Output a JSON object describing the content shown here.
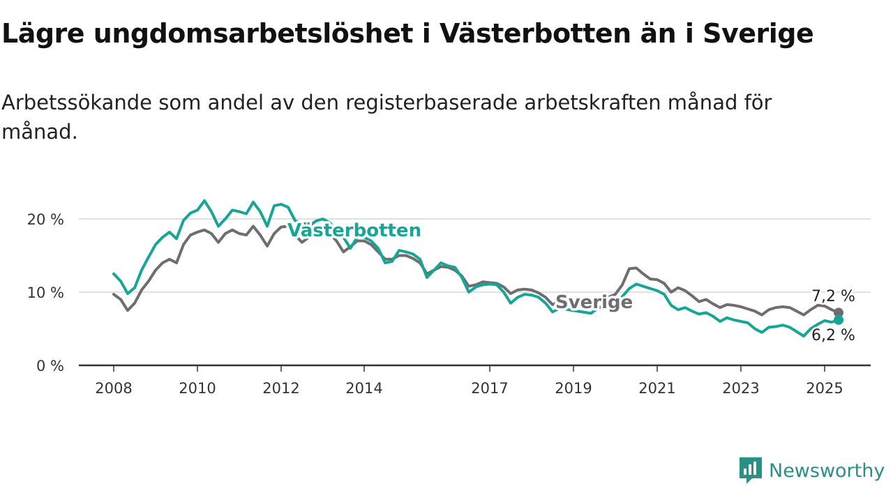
{
  "header": {
    "title": "Lägre ungdomsarbetslöshet i Västerbotten än i Sverige",
    "subtitle": "Arbetssökande som andel av den registerbaserade arbetskraften månad för månad."
  },
  "brand": {
    "name": "Newsworthy",
    "color": "#2a8f85",
    "icon": "newsworthy-logo-icon"
  },
  "chart_data": {
    "type": "line",
    "x_ticks": [
      "2008",
      "2010",
      "2012",
      "2014",
      "2017",
      "2019",
      "2021",
      "2023",
      "2025"
    ],
    "y_ticks": [
      "0 %",
      "10 %",
      "20 %"
    ],
    "ylim": [
      0,
      23
    ],
    "y_tick_values": [
      0,
      10,
      20
    ],
    "grid": true,
    "legend": "inline labels on lines",
    "series": [
      {
        "name": "Västerbotten",
        "color": "#17a596",
        "end_label": "6,2 %",
        "points": [
          [
            "2008-01",
            12.5
          ],
          [
            "2008-03",
            11.5
          ],
          [
            "2008-05",
            9.8
          ],
          [
            "2008-07",
            10.6
          ],
          [
            "2008-09",
            13.0
          ],
          [
            "2008-11",
            14.8
          ],
          [
            "2009-01",
            16.5
          ],
          [
            "2009-03",
            17.5
          ],
          [
            "2009-05",
            18.2
          ],
          [
            "2009-07",
            17.3
          ],
          [
            "2009-09",
            19.8
          ],
          [
            "2009-11",
            20.8
          ],
          [
            "2010-01",
            21.2
          ],
          [
            "2010-03",
            22.5
          ],
          [
            "2010-05",
            21.0
          ],
          [
            "2010-07",
            19.0
          ],
          [
            "2010-09",
            20.0
          ],
          [
            "2010-11",
            21.2
          ],
          [
            "2011-01",
            21.0
          ],
          [
            "2011-03",
            20.7
          ],
          [
            "2011-05",
            22.3
          ],
          [
            "2011-07",
            21.0
          ],
          [
            "2011-09",
            19.0
          ],
          [
            "2011-11",
            21.8
          ],
          [
            "2012-01",
            22.0
          ],
          [
            "2012-03",
            21.6
          ],
          [
            "2012-05",
            19.8
          ],
          [
            "2012-07",
            19.3
          ],
          [
            "2012-09",
            19.0
          ],
          [
            "2012-11",
            19.7
          ],
          [
            "2013-01",
            20.0
          ],
          [
            "2013-03",
            19.5
          ],
          [
            "2013-05",
            18.5
          ],
          [
            "2013-07",
            17.5
          ],
          [
            "2013-09",
            16.0
          ],
          [
            "2013-11",
            17.5
          ],
          [
            "2014-01",
            17.5
          ],
          [
            "2014-03",
            17.0
          ],
          [
            "2014-05",
            16.0
          ],
          [
            "2014-07",
            14.0
          ],
          [
            "2014-09",
            14.2
          ],
          [
            "2014-11",
            15.7
          ],
          [
            "2015-01",
            15.5
          ],
          [
            "2015-03",
            15.2
          ],
          [
            "2015-05",
            14.5
          ],
          [
            "2015-07",
            12.0
          ],
          [
            "2015-09",
            13.0
          ],
          [
            "2015-11",
            14.0
          ],
          [
            "2016-01",
            13.6
          ],
          [
            "2016-03",
            13.4
          ],
          [
            "2016-05",
            12.0
          ],
          [
            "2016-07",
            10.0
          ],
          [
            "2016-09",
            10.7
          ],
          [
            "2016-11",
            11.0
          ],
          [
            "2017-01",
            11.1
          ],
          [
            "2017-03",
            11.0
          ],
          [
            "2017-05",
            10.0
          ],
          [
            "2017-07",
            8.5
          ],
          [
            "2017-09",
            9.3
          ],
          [
            "2017-11",
            9.7
          ],
          [
            "2018-01",
            9.6
          ],
          [
            "2018-03",
            9.3
          ],
          [
            "2018-05",
            8.5
          ],
          [
            "2018-07",
            7.3
          ],
          [
            "2018-09",
            7.8
          ],
          [
            "2019-06",
            7.1
          ],
          [
            "2019-08",
            7.8
          ],
          [
            "2019-10",
            8.2
          ],
          [
            "2020-01",
            8.6
          ],
          [
            "2020-03",
            9.4
          ],
          [
            "2020-05",
            10.5
          ],
          [
            "2020-07",
            11.1
          ],
          [
            "2020-09",
            10.8
          ],
          [
            "2020-11",
            10.5
          ],
          [
            "2021-01",
            10.2
          ],
          [
            "2021-03",
            9.7
          ],
          [
            "2021-05",
            8.2
          ],
          [
            "2021-07",
            7.6
          ],
          [
            "2021-09",
            7.9
          ],
          [
            "2021-11",
            7.4
          ],
          [
            "2022-01",
            7.0
          ],
          [
            "2022-03",
            7.2
          ],
          [
            "2022-05",
            6.7
          ],
          [
            "2022-07",
            6.0
          ],
          [
            "2022-09",
            6.5
          ],
          [
            "2022-11",
            6.2
          ],
          [
            "2023-01",
            6.0
          ],
          [
            "2023-03",
            5.8
          ],
          [
            "2023-05",
            5.0
          ],
          [
            "2023-07",
            4.5
          ],
          [
            "2023-09",
            5.2
          ],
          [
            "2023-11",
            5.3
          ],
          [
            "2024-01",
            5.5
          ],
          [
            "2024-03",
            5.2
          ],
          [
            "2024-05",
            4.6
          ],
          [
            "2024-07",
            4.0
          ],
          [
            "2024-09",
            5.0
          ],
          [
            "2024-11",
            5.6
          ],
          [
            "2025-01",
            6.1
          ],
          [
            "2025-03",
            5.9
          ],
          [
            "2025-05",
            6.2
          ]
        ]
      },
      {
        "name": "Sverige",
        "color": "#6d6d72",
        "end_label": "7,2 %",
        "points": [
          [
            "2008-01",
            9.7
          ],
          [
            "2008-03",
            9.0
          ],
          [
            "2008-05",
            7.5
          ],
          [
            "2008-07",
            8.5
          ],
          [
            "2008-09",
            10.3
          ],
          [
            "2008-11",
            11.5
          ],
          [
            "2009-01",
            13.0
          ],
          [
            "2009-03",
            14.0
          ],
          [
            "2009-05",
            14.5
          ],
          [
            "2009-07",
            14.0
          ],
          [
            "2009-09",
            16.5
          ],
          [
            "2009-11",
            17.8
          ],
          [
            "2010-01",
            18.2
          ],
          [
            "2010-03",
            18.5
          ],
          [
            "2010-05",
            18.0
          ],
          [
            "2010-07",
            16.8
          ],
          [
            "2010-09",
            18.0
          ],
          [
            "2010-11",
            18.5
          ],
          [
            "2011-01",
            18.0
          ],
          [
            "2011-03",
            17.8
          ],
          [
            "2011-05",
            19.0
          ],
          [
            "2011-07",
            17.8
          ],
          [
            "2011-09",
            16.3
          ],
          [
            "2011-11",
            18.0
          ],
          [
            "2012-01",
            18.9
          ],
          [
            "2012-03",
            19.0
          ],
          [
            "2012-05",
            17.8
          ],
          [
            "2012-07",
            16.8
          ],
          [
            "2012-09",
            17.5
          ],
          [
            "2012-11",
            18.3
          ],
          [
            "2013-01",
            18.4
          ],
          [
            "2013-03",
            18.0
          ],
          [
            "2013-05",
            17.0
          ],
          [
            "2013-07",
            15.5
          ],
          [
            "2013-09",
            16.2
          ],
          [
            "2013-11",
            17.0
          ],
          [
            "2014-01",
            17.0
          ],
          [
            "2014-03",
            16.5
          ],
          [
            "2014-05",
            15.5
          ],
          [
            "2014-07",
            14.5
          ],
          [
            "2014-09",
            14.5
          ],
          [
            "2014-11",
            15.0
          ],
          [
            "2015-01",
            15.0
          ],
          [
            "2015-03",
            14.6
          ],
          [
            "2015-05",
            14.0
          ],
          [
            "2015-07",
            12.5
          ],
          [
            "2015-09",
            13.0
          ],
          [
            "2015-11",
            13.5
          ],
          [
            "2016-01",
            13.4
          ],
          [
            "2016-03",
            13.0
          ],
          [
            "2016-05",
            12.2
          ],
          [
            "2016-07",
            10.8
          ],
          [
            "2016-09",
            11.0
          ],
          [
            "2016-11",
            11.4
          ],
          [
            "2017-01",
            11.3
          ],
          [
            "2017-03",
            11.2
          ],
          [
            "2017-05",
            10.7
          ],
          [
            "2017-07",
            9.8
          ],
          [
            "2017-09",
            10.3
          ],
          [
            "2017-11",
            10.4
          ],
          [
            "2018-01",
            10.3
          ],
          [
            "2018-03",
            9.9
          ],
          [
            "2018-05",
            9.3
          ],
          [
            "2018-07",
            8.3
          ],
          [
            "2018-09",
            8.7
          ],
          [
            "2019-06",
            8.2
          ],
          [
            "2019-08",
            8.8
          ],
          [
            "2019-10",
            9.1
          ],
          [
            "2020-01",
            9.7
          ],
          [
            "2020-03",
            11.0
          ],
          [
            "2020-05",
            13.2
          ],
          [
            "2020-07",
            13.3
          ],
          [
            "2020-09",
            12.5
          ],
          [
            "2020-11",
            11.8
          ],
          [
            "2021-01",
            11.7
          ],
          [
            "2021-03",
            11.2
          ],
          [
            "2021-05",
            10.0
          ],
          [
            "2021-07",
            10.6
          ],
          [
            "2021-09",
            10.2
          ],
          [
            "2021-11",
            9.5
          ],
          [
            "2022-01",
            8.7
          ],
          [
            "2022-03",
            9.0
          ],
          [
            "2022-05",
            8.4
          ],
          [
            "2022-07",
            7.9
          ],
          [
            "2022-09",
            8.3
          ],
          [
            "2022-11",
            8.2
          ],
          [
            "2023-01",
            8.0
          ],
          [
            "2023-03",
            7.7
          ],
          [
            "2023-05",
            7.4
          ],
          [
            "2023-07",
            6.9
          ],
          [
            "2023-09",
            7.6
          ],
          [
            "2023-11",
            7.9
          ],
          [
            "2024-01",
            8.0
          ],
          [
            "2024-03",
            7.9
          ],
          [
            "2024-05",
            7.4
          ],
          [
            "2024-07",
            6.9
          ],
          [
            "2024-09",
            7.6
          ],
          [
            "2024-11",
            8.2
          ],
          [
            "2025-01",
            8.1
          ],
          [
            "2025-03",
            7.6
          ],
          [
            "2025-05",
            7.2
          ]
        ]
      }
    ]
  }
}
